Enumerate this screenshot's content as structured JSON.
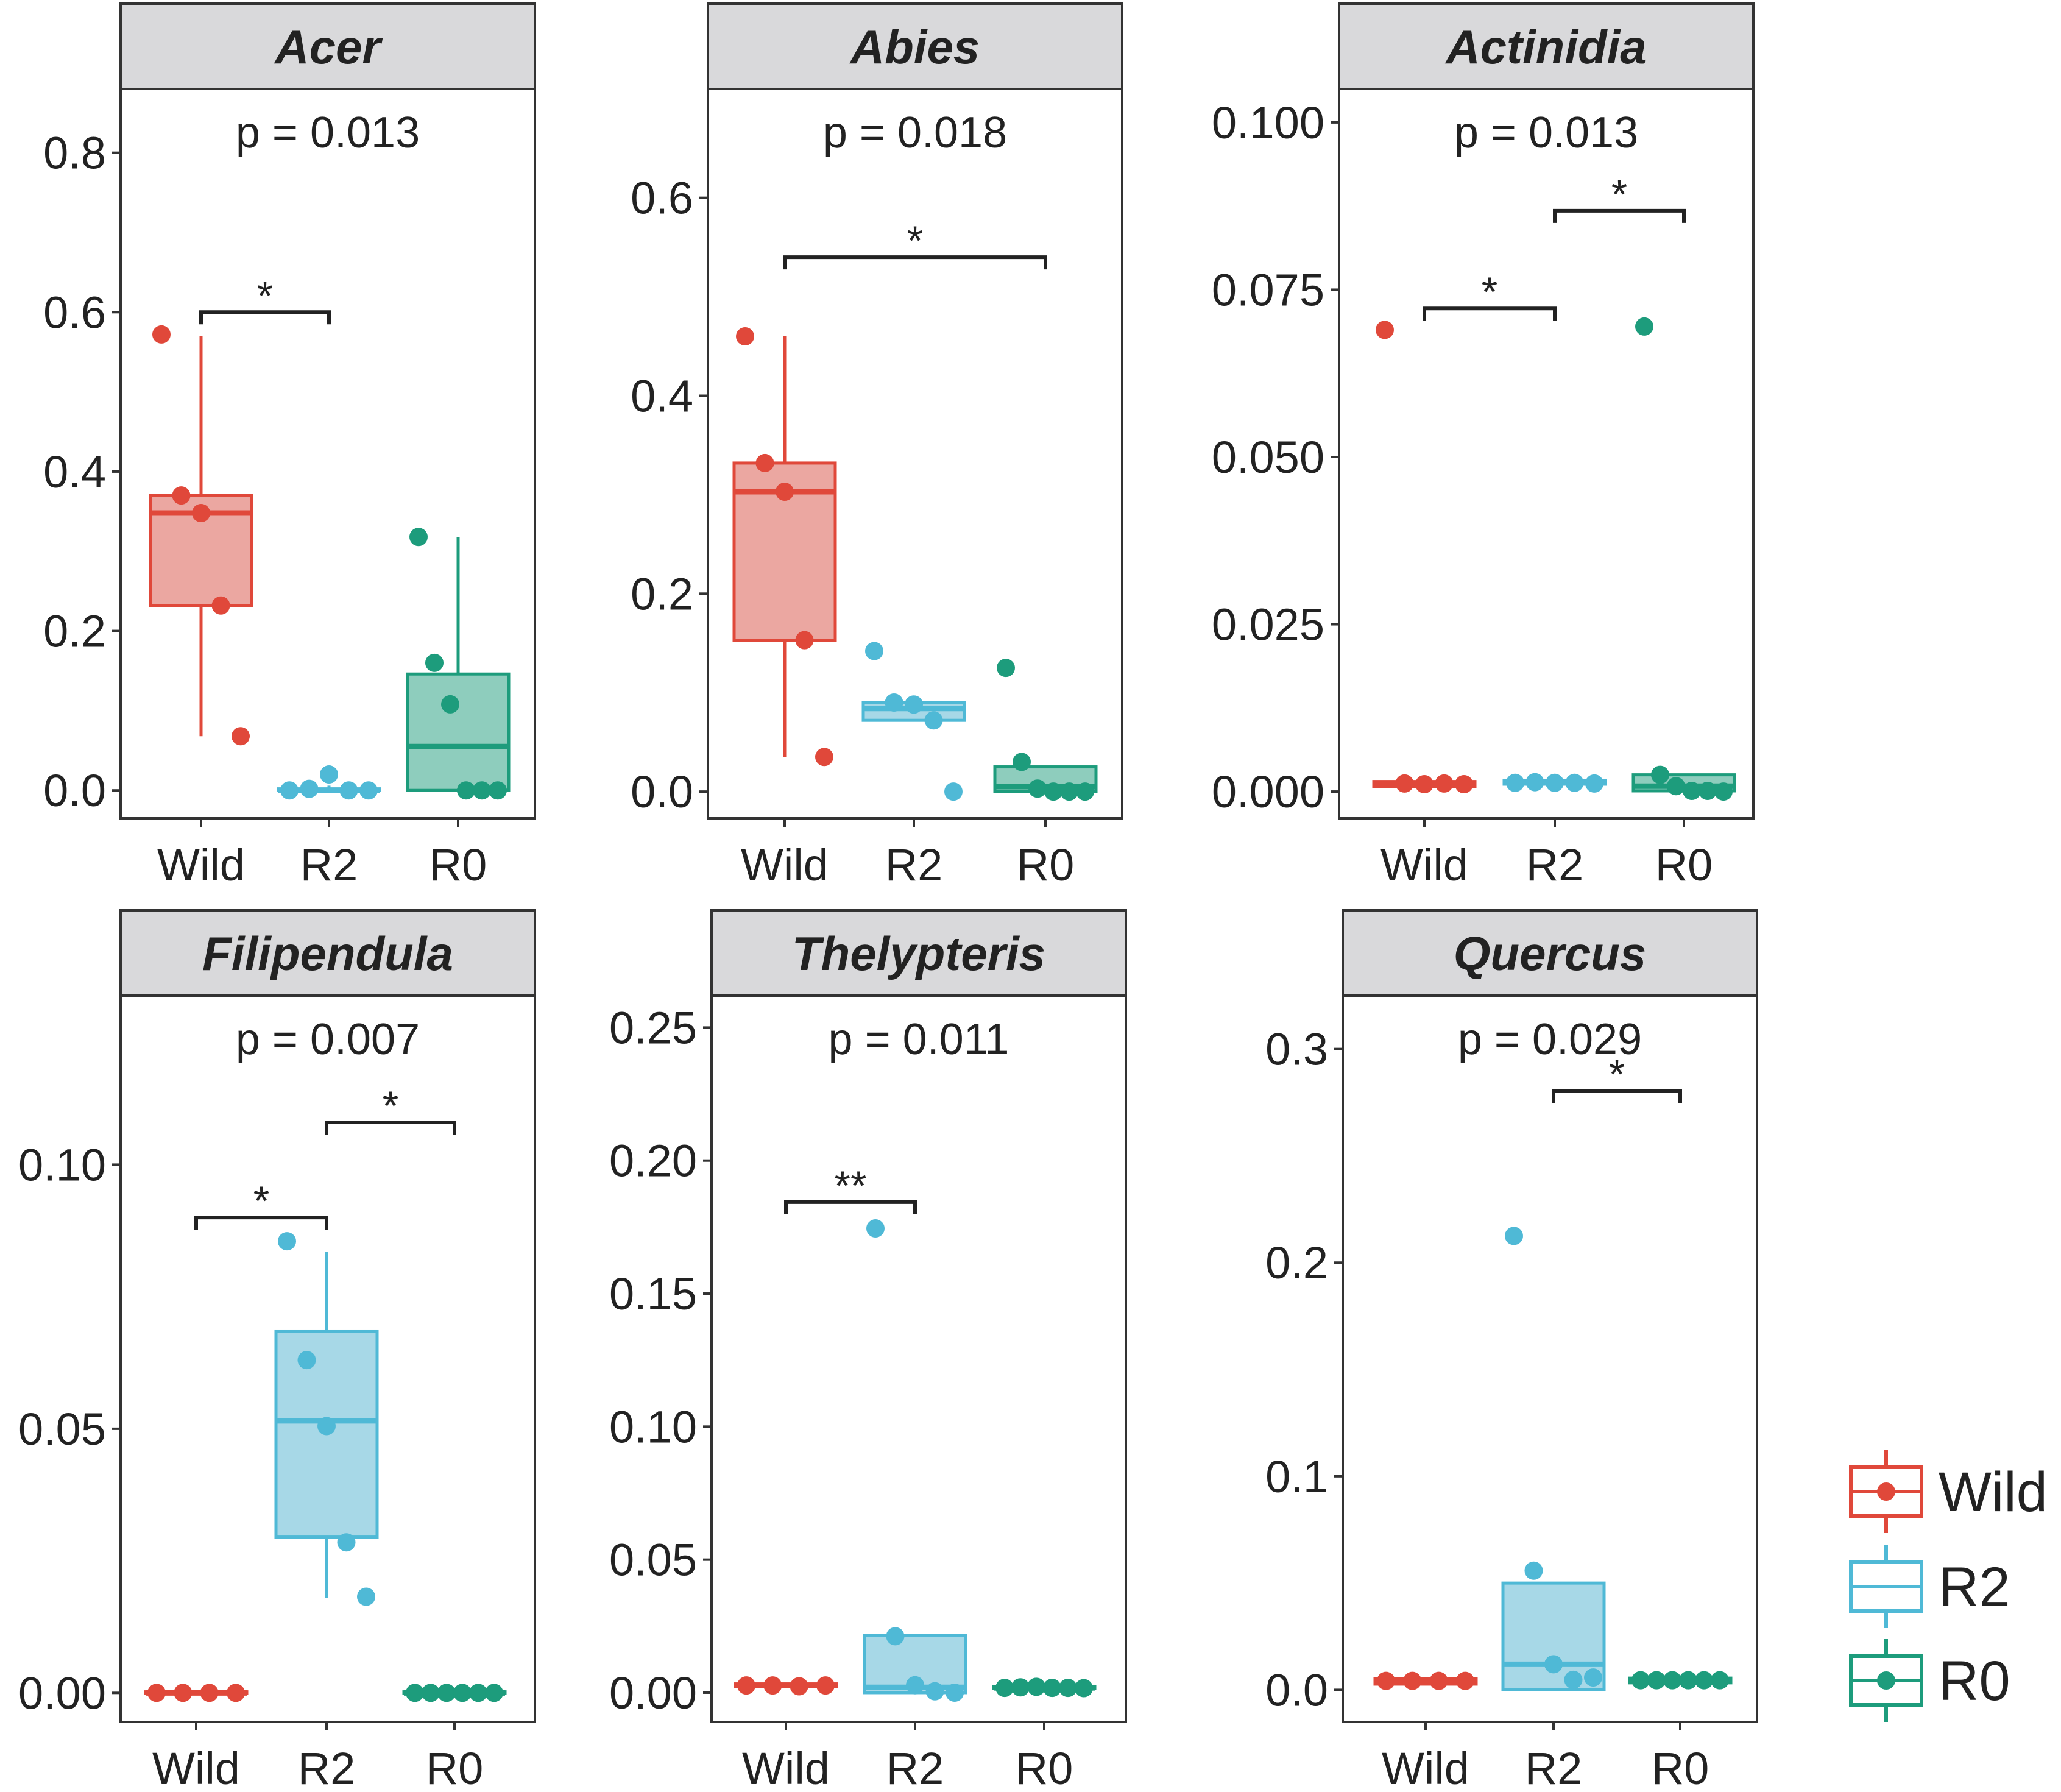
{
  "colors": {
    "Wild": "#E0483A",
    "R2": "#4FB9D6",
    "R0": "#1D9C7C",
    "strip": "#D9D9DB",
    "frame": "#333333"
  },
  "legend": {
    "items": [
      "Wild",
      "R2",
      "R0"
    ],
    "position": "right"
  },
  "chart_data": [
    {
      "type": "box",
      "title": "Acer",
      "p_label": "p = 0.013",
      "categories": [
        "Wild",
        "R2",
        "R0"
      ],
      "ylim": [
        -0.035,
        0.88
      ],
      "yticks": [
        0.0,
        0.2,
        0.4,
        0.6,
        0.8
      ],
      "ytick_labels": [
        "0.0",
        "0.2",
        "0.4",
        "0.6",
        "0.8"
      ],
      "boxes": [
        {
          "group": "Wild",
          "q1": 0.232,
          "median": 0.348,
          "q3": 0.37,
          "lower": 0.068,
          "upper": 0.57
        },
        {
          "group": "R2",
          "q1": 0.0,
          "median": 0.0,
          "q3": 0.002,
          "lower": 0.0,
          "upper": 0.006
        },
        {
          "group": "R0",
          "q1": 0.0,
          "median": 0.055,
          "q3": 0.146,
          "lower": 0.0,
          "upper": 0.318
        }
      ],
      "points": [
        {
          "group": "Wild",
          "values": [
            0.572,
            0.37,
            0.348,
            0.232,
            0.068
          ]
        },
        {
          "group": "R2",
          "values": [
            0.0,
            0.002,
            0.02,
            0.0,
            0.0
          ]
        },
        {
          "group": "R0",
          "values": [
            0.318,
            0.16,
            0.108,
            0.0,
            0.0,
            0.0
          ]
        }
      ],
      "brackets": [
        {
          "from": "Wild",
          "to": "R2",
          "label": "*",
          "y": 0.6
        }
      ]
    },
    {
      "type": "box",
      "title": "Abies",
      "p_label": "p = 0.018",
      "categories": [
        "Wild",
        "R2",
        "R0"
      ],
      "ylim": [
        -0.027,
        0.71
      ],
      "yticks": [
        0.0,
        0.2,
        0.4,
        0.6
      ],
      "ytick_labels": [
        "0.0",
        "0.2",
        "0.4",
        "0.6"
      ],
      "boxes": [
        {
          "group": "Wild",
          "q1": 0.153,
          "median": 0.303,
          "q3": 0.332,
          "lower": 0.035,
          "upper": 0.46
        },
        {
          "group": "R2",
          "q1": 0.072,
          "median": 0.084,
          "q3": 0.09,
          "lower": 0.072,
          "upper": 0.09
        },
        {
          "group": "R0",
          "q1": 0.0,
          "median": 0.005,
          "q3": 0.025,
          "lower": 0.0,
          "upper": 0.025
        }
      ],
      "points": [
        {
          "group": "Wild",
          "values": [
            0.46,
            0.332,
            0.303,
            0.153,
            0.035
          ]
        },
        {
          "group": "R2",
          "values": [
            0.142,
            0.09,
            0.088,
            0.072,
            0.0
          ]
        },
        {
          "group": "R0",
          "values": [
            0.125,
            0.03,
            0.003,
            0.0,
            0.0,
            0.0
          ]
        }
      ],
      "brackets": [
        {
          "from": "Wild",
          "to": "R0",
          "label": "*",
          "y": 0.54
        }
      ]
    },
    {
      "type": "box",
      "title": "Actinidia",
      "p_label": "p = 0.013",
      "categories": [
        "Wild",
        "R2",
        "R0"
      ],
      "ylim": [
        -0.004,
        0.105
      ],
      "yticks": [
        0.0,
        0.025,
        0.05,
        0.075,
        0.1
      ],
      "ytick_labels": [
        "0.000",
        "0.025",
        "0.050",
        "0.075",
        "0.100"
      ],
      "boxes": [
        {
          "group": "Wild",
          "q1": 0.0007,
          "median": 0.0012,
          "q3": 0.0015,
          "lower": 0.0007,
          "upper": 0.0015
        },
        {
          "group": "R2",
          "q1": 0.0011,
          "median": 0.0013,
          "q3": 0.0016,
          "lower": 0.0011,
          "upper": 0.0016
        },
        {
          "group": "R0",
          "q1": 0.0001,
          "median": 0.0008,
          "q3": 0.0025,
          "lower": 0.0,
          "upper": 0.0025
        }
      ],
      "points": [
        {
          "group": "Wild",
          "values": [
            0.069,
            0.0012,
            0.0011,
            0.0012,
            0.0011
          ]
        },
        {
          "group": "R2",
          "values": [
            0.0013,
            0.0014,
            0.0013,
            0.0013,
            0.0012
          ]
        },
        {
          "group": "R0",
          "values": [
            0.0695,
            0.0025,
            0.0008,
            0.0001,
            0.0001,
            0.0
          ]
        }
      ],
      "brackets": [
        {
          "from": "Wild",
          "to": "R2",
          "label": "*",
          "y": 0.0722
        },
        {
          "from": "R2",
          "to": "R0",
          "label": "*",
          "y": 0.0868
        }
      ]
    },
    {
      "type": "box",
      "title": "Filipendula",
      "p_label": "p = 0.007",
      "categories": [
        "Wild",
        "R2",
        "R0"
      ],
      "ylim": [
        -0.0055,
        0.132
      ],
      "yticks": [
        0.0,
        0.05,
        0.1
      ],
      "ytick_labels": [
        "0.00",
        "0.05",
        "0.10"
      ],
      "boxes": [
        {
          "group": "Wild",
          "q1": 0.0,
          "median": 0.0,
          "q3": 0.0002,
          "lower": 0.0,
          "upper": 0.0002
        },
        {
          "group": "R2",
          "q1": 0.0295,
          "median": 0.0515,
          "q3": 0.0685,
          "lower": 0.018,
          "upper": 0.0835
        },
        {
          "group": "R0",
          "q1": 0.0,
          "median": 0.0,
          "q3": 0.0002,
          "lower": 0.0,
          "upper": 0.0002
        }
      ],
      "points": [
        {
          "group": "Wild",
          "values": [
            0.0,
            0.0,
            0.0,
            0.0
          ]
        },
        {
          "group": "R2",
          "values": [
            0.0855,
            0.063,
            0.0505,
            0.0285,
            0.0182
          ]
        },
        {
          "group": "R0",
          "values": [
            0.0,
            0.0,
            0.0,
            0.0,
            0.0,
            0.0
          ]
        }
      ],
      "brackets": [
        {
          "from": "Wild",
          "to": "R2",
          "label": "*",
          "y": 0.09
        },
        {
          "from": "R2",
          "to": "R0",
          "label": "*",
          "y": 0.108
        }
      ]
    },
    {
      "type": "box",
      "title": "Thelypteris",
      "p_label": "p = 0.011",
      "categories": [
        "Wild",
        "R2",
        "R0"
      ],
      "ylim": [
        -0.011,
        0.262
      ],
      "yticks": [
        0.0,
        0.05,
        0.1,
        0.15,
        0.2,
        0.25
      ],
      "ytick_labels": [
        "0.00",
        "0.05",
        "0.10",
        "0.15",
        "0.20",
        "0.25"
      ],
      "boxes": [
        {
          "group": "Wild",
          "q1": 0.0024,
          "median": 0.0027,
          "q3": 0.0033,
          "lower": 0.0024,
          "upper": 0.0033
        },
        {
          "group": "R2",
          "q1": 0.0,
          "median": 0.002,
          "q3": 0.0215,
          "lower": 0.0,
          "upper": 0.0215
        },
        {
          "group": "R0",
          "q1": 0.0017,
          "median": 0.0018,
          "q3": 0.0024,
          "lower": 0.0017,
          "upper": 0.0024
        }
      ],
      "points": [
        {
          "group": "Wild",
          "values": [
            0.0027,
            0.0027,
            0.0024,
            0.0027
          ]
        },
        {
          "group": "R2",
          "values": [
            0.1745,
            0.0212,
            0.0028,
            0.0005,
            0.0
          ]
        },
        {
          "group": "R0",
          "values": [
            0.0018,
            0.002,
            0.0022,
            0.0018,
            0.0018,
            0.0017
          ]
        }
      ],
      "brackets": [
        {
          "from": "Wild",
          "to": "R2",
          "label": "**",
          "y": 0.1844
        }
      ]
    },
    {
      "type": "box",
      "title": "Quercus",
      "p_label": "p = 0.029",
      "categories": [
        "Wild",
        "R2",
        "R0"
      ],
      "ylim": [
        -0.015,
        0.325
      ],
      "yticks": [
        0.0,
        0.1,
        0.2,
        0.3
      ],
      "ytick_labels": [
        "0.0",
        "0.1",
        "0.2",
        "0.3"
      ],
      "boxes": [
        {
          "group": "Wild",
          "q1": 0.0027,
          "median": 0.004,
          "q3": 0.0052,
          "lower": 0.0027,
          "upper": 0.0052
        },
        {
          "group": "R2",
          "q1": 0.0,
          "median": 0.012,
          "q3": 0.05,
          "lower": 0.0,
          "upper": 0.05
        },
        {
          "group": "R0",
          "q1": 0.0033,
          "median": 0.0045,
          "q3": 0.0055,
          "lower": 0.0033,
          "upper": 0.0055
        }
      ],
      "points": [
        {
          "group": "Wild",
          "values": [
            0.0042,
            0.0042,
            0.0042,
            0.0042
          ]
        },
        {
          "group": "R2",
          "values": [
            0.2125,
            0.0558,
            0.012,
            0.0047,
            0.0058
          ]
        },
        {
          "group": "R0",
          "values": [
            0.0045,
            0.0045,
            0.0045,
            0.0045,
            0.0045,
            0.0045
          ]
        }
      ],
      "brackets": [
        {
          "from": "R2",
          "to": "R0",
          "label": "*",
          "y": 0.2805
        }
      ]
    }
  ]
}
